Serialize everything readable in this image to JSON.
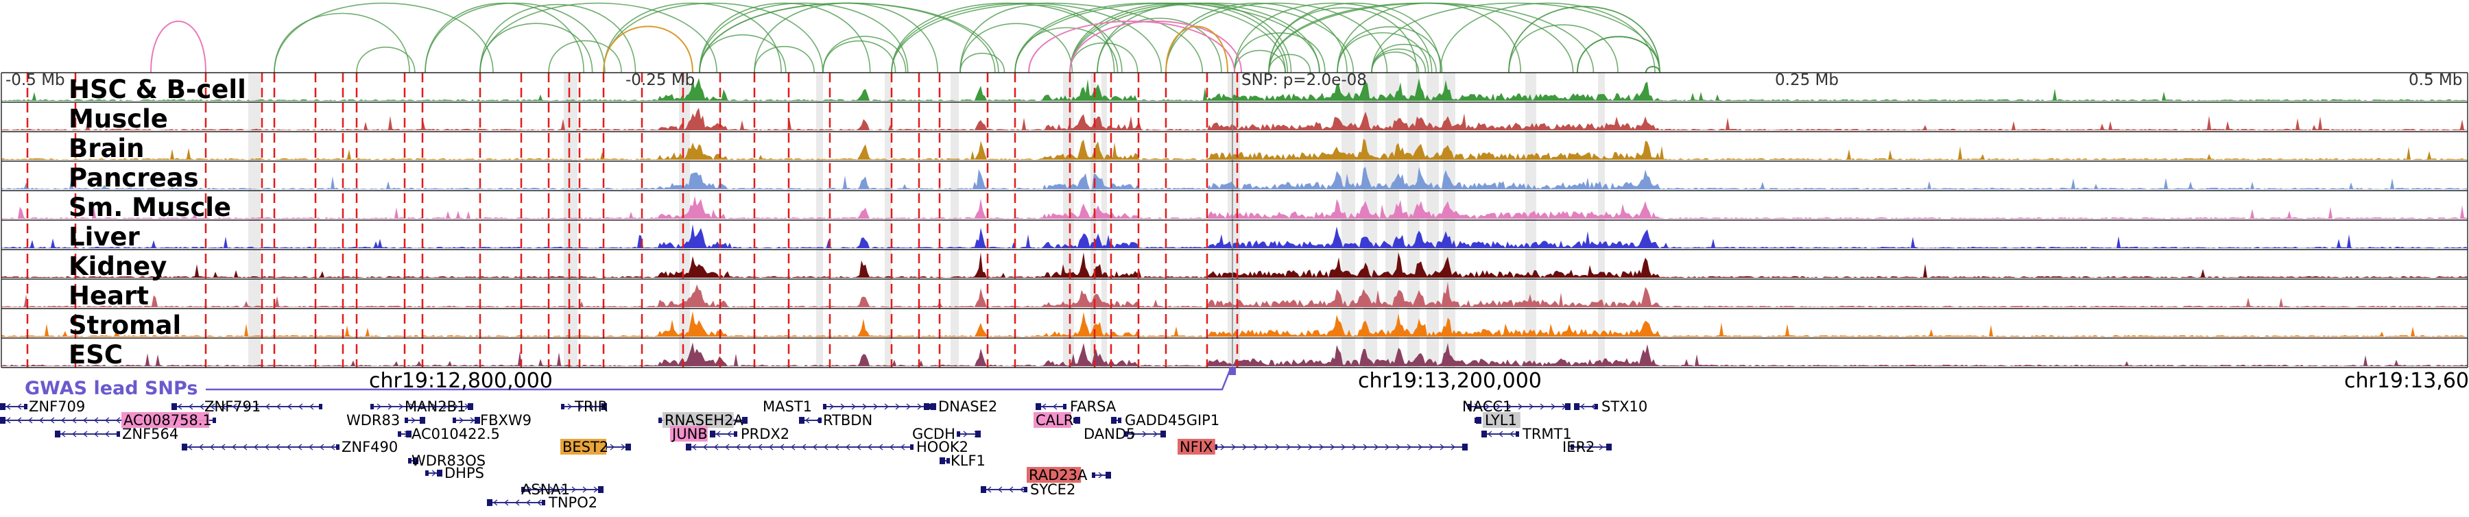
{
  "colors": {
    "hsc": "#3d9a3d",
    "muscle": "#c0504d",
    "brain": "#c08a1e",
    "pancreas": "#7b9bd8",
    "smooth_muscle": "#e37fbf",
    "liver": "#3b3bd4",
    "kidney": "#6a0d0d",
    "heart": "#c4626c",
    "stromal": "#f07c10",
    "esc": "#8a4060",
    "gwas": "#6a5acd",
    "loop": "#4c9a4c",
    "loop_pink": "#e87ab9",
    "loop_orange": "#d99a2b",
    "snp_line": "#e21b1b",
    "highlight": "#d9d9d9"
  },
  "axis": {
    "ticks": [
      "-0.5 Mb",
      "-0.25 Mb",
      "0.25 Mb",
      "0.5 Mb"
    ],
    "snp_label": "SNP: p=2.0e-08"
  },
  "tracks": [
    {
      "label": "HSC & B-cell",
      "color_key": "hsc"
    },
    {
      "label": "Muscle",
      "color_key": "muscle"
    },
    {
      "label": "Brain",
      "color_key": "brain"
    },
    {
      "label": "Pancreas",
      "color_key": "pancreas"
    },
    {
      "label": "Sm. Muscle",
      "color_key": "smooth_muscle"
    },
    {
      "label": "Liver",
      "color_key": "liver"
    },
    {
      "label": "Kidney",
      "color_key": "kidney"
    },
    {
      "label": "Heart",
      "color_key": "heart"
    },
    {
      "label": "Stromal",
      "color_key": "stromal"
    },
    {
      "label": "ESC",
      "color_key": "esc"
    }
  ],
  "gwas": {
    "label": "GWAS lead SNPs"
  },
  "coords": [
    "chr19:12,800,000",
    "chr19:13,200,000",
    "chr19:13,60"
  ],
  "genes": [
    {
      "name": "ZNF709",
      "hl": ""
    },
    {
      "name": "ZNF791",
      "hl": ""
    },
    {
      "name": "AC008758.1",
      "hl": "pink"
    },
    {
      "name": "ZNF564",
      "hl": ""
    },
    {
      "name": "MAN2B1",
      "hl": ""
    },
    {
      "name": "WDR83",
      "hl": ""
    },
    {
      "name": "FBXW9",
      "hl": ""
    },
    {
      "name": "AC010422.5",
      "hl": ""
    },
    {
      "name": "ZNF490",
      "hl": ""
    },
    {
      "name": "WDR83OS",
      "hl": ""
    },
    {
      "name": "DHPS",
      "hl": ""
    },
    {
      "name": "ASNA1",
      "hl": ""
    },
    {
      "name": "TNPO2",
      "hl": ""
    },
    {
      "name": "TRIR",
      "hl": ""
    },
    {
      "name": "BEST2",
      "hl": "orange"
    },
    {
      "name": "RNASEH2A",
      "hl": "gray"
    },
    {
      "name": "JUNB",
      "hl": "pink"
    },
    {
      "name": "PRDX2",
      "hl": ""
    },
    {
      "name": "MAST1",
      "hl": ""
    },
    {
      "name": "RTBDN",
      "hl": ""
    },
    {
      "name": "HOOK2",
      "hl": ""
    },
    {
      "name": "DNASE2",
      "hl": ""
    },
    {
      "name": "GCDH",
      "hl": ""
    },
    {
      "name": "KLF1",
      "hl": ""
    },
    {
      "name": "FARSA",
      "hl": ""
    },
    {
      "name": "CALR",
      "hl": "pink"
    },
    {
      "name": "GADD45GIP1",
      "hl": ""
    },
    {
      "name": "DAND5",
      "hl": ""
    },
    {
      "name": "RAD23A",
      "hl": "red"
    },
    {
      "name": "SYCE2",
      "hl": ""
    },
    {
      "name": "NFIX",
      "hl": "red"
    },
    {
      "name": "NACC1",
      "hl": ""
    },
    {
      "name": "STX10",
      "hl": ""
    },
    {
      "name": "LYL1",
      "hl": "gray"
    },
    {
      "name": "TRMT1",
      "hl": ""
    },
    {
      "name": "IER2",
      "hl": ""
    }
  ]
}
